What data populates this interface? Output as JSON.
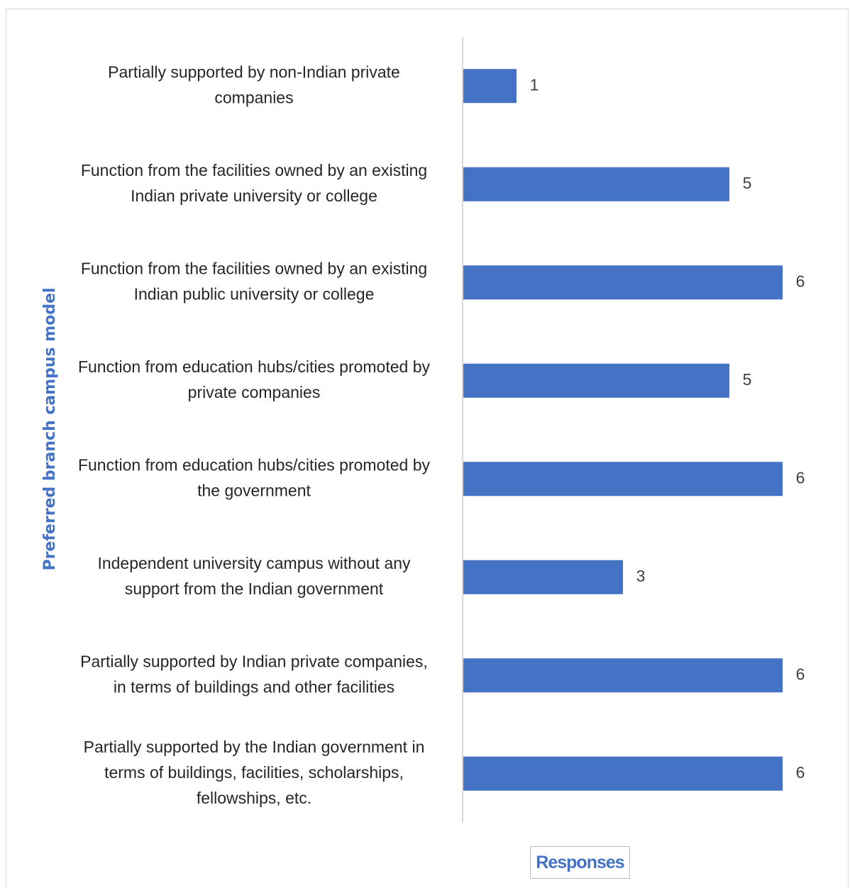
{
  "chart_data": {
    "type": "bar",
    "orientation": "horizontal",
    "categories": [
      "Partially supported by non-Indian private companies",
      "Function from the facilities owned by an existing Indian private university or college",
      "Function from the facilities owned by an existing Indian public university or college",
      "Function from education hubs/cities promoted by private companies",
      "Function from education hubs/cities promoted by the government",
      "Independent university campus without any support from the Indian government",
      "Partially supported by Indian private companies, in terms of buildings and other facilities",
      "Partially supported by the Indian government in terms of buildings, facilities, scholarships, fellowships, etc."
    ],
    "category_lines": [
      [
        "Partially supported by non-Indian private",
        "companies"
      ],
      [
        "Function from the facilities owned by an existing",
        "Indian private university or college"
      ],
      [
        "Function from the facilities owned by an existing",
        "Indian public university or college"
      ],
      [
        "Function from education hubs/cities promoted by",
        "private companies"
      ],
      [
        "Function from education hubs/cities promoted by",
        "the government"
      ],
      [
        "Independent university campus without any",
        "support from the Indian government"
      ],
      [
        "Partially supported by Indian private companies,",
        "in terms of buildings and other facilities"
      ],
      [
        "Partially supported by the Indian government in",
        "terms of buildings, facilities, scholarships,",
        "fellowships, etc."
      ]
    ],
    "values": [
      1,
      5,
      6,
      5,
      6,
      3,
      6,
      6
    ],
    "data_labels": [
      "1",
      "5",
      "6",
      "5",
      "6",
      "3",
      "6",
      "6"
    ],
    "title": "",
    "xlabel": "Responses",
    "ylabel": "Preferred branch campus model",
    "xlim": [
      0,
      6
    ],
    "grid": false,
    "bar_color": "#4472c4"
  }
}
